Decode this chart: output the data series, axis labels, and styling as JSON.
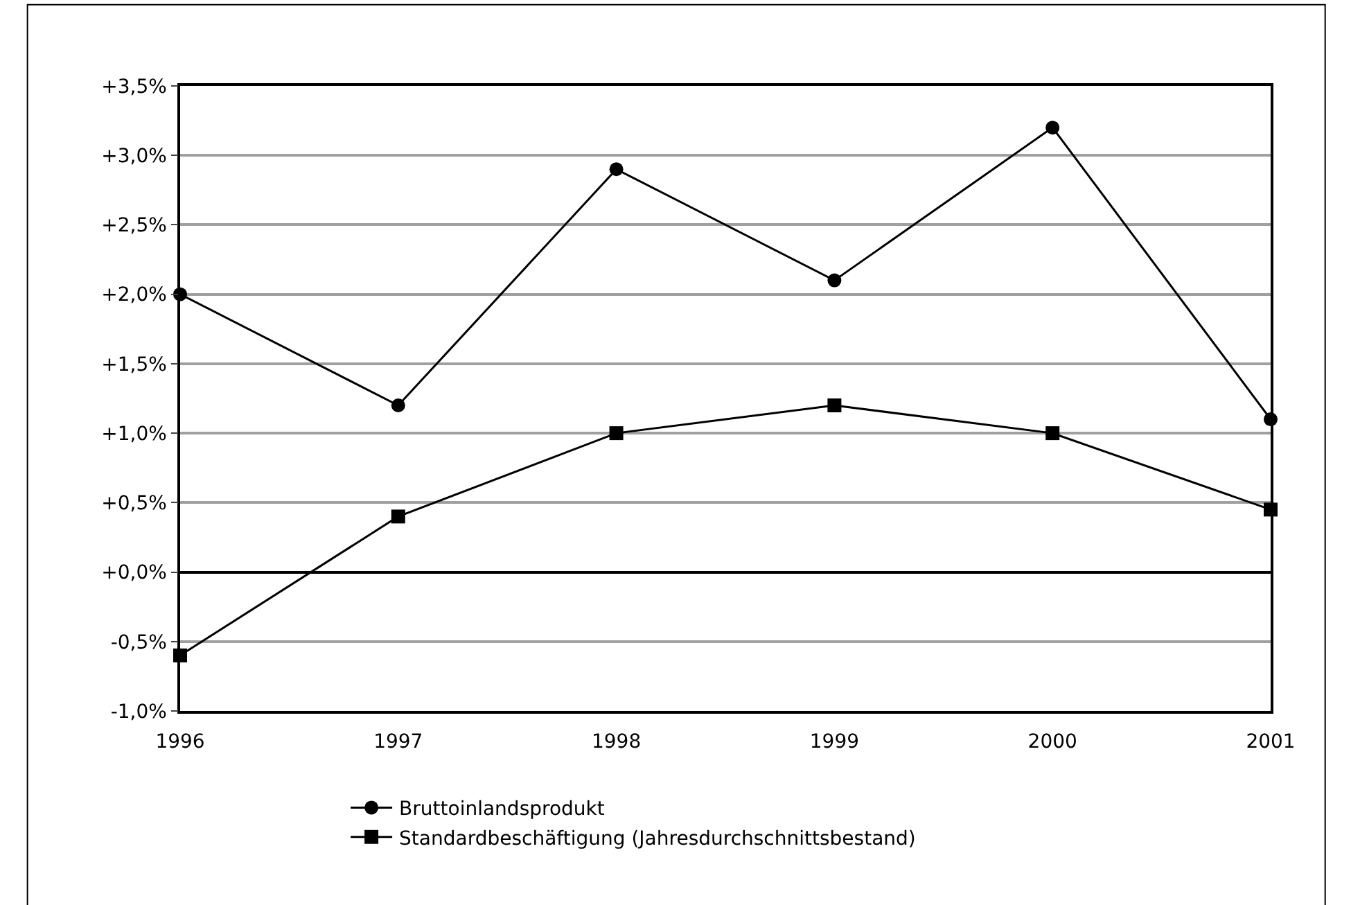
{
  "chart_data": {
    "type": "line",
    "x": [
      1996,
      1997,
      1998,
      1999,
      2000,
      2001
    ],
    "xlim": [
      1996,
      2001
    ],
    "xticks": [
      1996,
      1997,
      1998,
      1999,
      2000,
      2001
    ],
    "ylim": [
      -1.0,
      3.5
    ],
    "yticks": [
      {
        "value": -1.0,
        "label": "-1,0%"
      },
      {
        "value": -0.5,
        "label": "-0,5%"
      },
      {
        "value": 0.0,
        "label": "+0,0%"
      },
      {
        "value": 0.5,
        "label": "+0,5%"
      },
      {
        "value": 1.0,
        "label": "+1,0%"
      },
      {
        "value": 1.5,
        "label": "+1,5%"
      },
      {
        "value": 2.0,
        "label": "+2,0%"
      },
      {
        "value": 2.5,
        "label": "+2,5%"
      },
      {
        "value": 3.0,
        "label": "+3,0%"
      },
      {
        "value": 3.5,
        "label": "+3,5%"
      }
    ],
    "series": [
      {
        "name": "Bruttoinlandsprodukt",
        "color": "#000000",
        "marker": "circle",
        "values": [
          2.0,
          1.2,
          2.9,
          2.1,
          3.2,
          1.1
        ]
      },
      {
        "name": "Standardbeschäftigung (Jahresdurchschnittsbestand)",
        "color": "#000000",
        "marker": "square",
        "values": [
          -0.6,
          0.4,
          1.0,
          1.2,
          1.0,
          0.45
        ]
      }
    ],
    "grid": "y",
    "legend": "bottom",
    "line_style": "solid"
  }
}
